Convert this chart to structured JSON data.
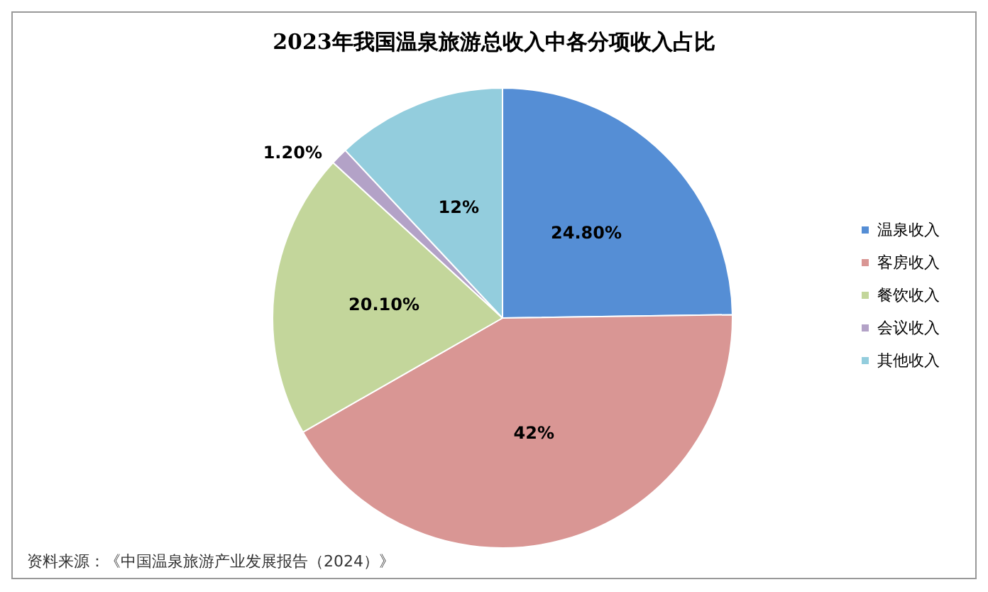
{
  "chart_data": {
    "type": "pie",
    "title": "2023年我国温泉旅游总收入中各分项收入占比",
    "categories": [
      "温泉收入",
      "客房收入",
      "餐饮收入",
      "会议收入",
      "其他收入"
    ],
    "values": [
      24.8,
      42,
      20.1,
      1.2,
      12
    ],
    "value_labels": [
      "24.80%",
      "42%",
      "20.10%",
      "1.20%",
      "12%"
    ],
    "colors": [
      "#558ed5",
      "#d99694",
      "#c3d69b",
      "#b3a2c7",
      "#93cddd"
    ],
    "legend": "right",
    "annotations": [
      "资料来源：《中国温泉旅游产业发展报告（2024）》"
    ]
  }
}
